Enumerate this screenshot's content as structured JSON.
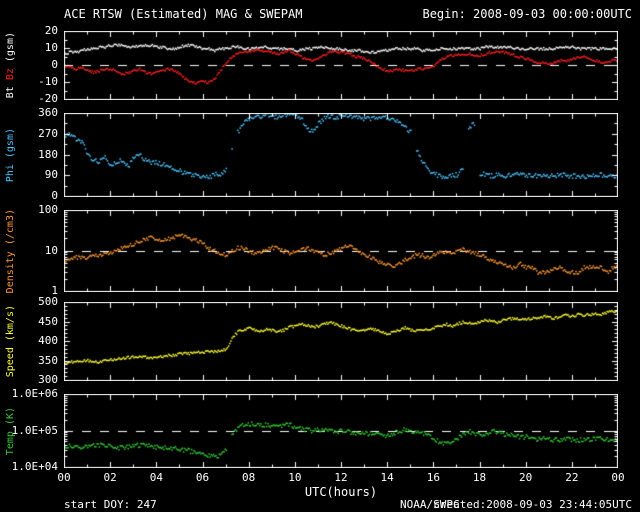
{
  "header": {
    "title": "ACE RTSW (Estimated) MAG & SWEPAM",
    "begin": "Begin: 2008-09-03 00:00:00UTC"
  },
  "footer": {
    "start_doy": "start DOY: 247",
    "agency": "NOAA/SWPC",
    "created": "created:2008-09-03 23:44:05UTC"
  },
  "colors": {
    "background": "#000000",
    "frame": "#ffffff",
    "dashed_reference": "#ffffff",
    "bt": "#ffffff",
    "bz": "#ff2020",
    "phi": "#4dc3ff",
    "density": "#ff9933",
    "speed": "#ffff33",
    "temp": "#33cc33"
  },
  "x_axis": {
    "label": "UTC(hours)",
    "tick_labels": [
      "00",
      "02",
      "04",
      "06",
      "08",
      "10",
      "12",
      "14",
      "16",
      "18",
      "20",
      "22",
      "00"
    ],
    "start_hour": 0,
    "end_hour": 24,
    "sample_step_hours": 0.25
  },
  "chart_data": [
    {
      "type": "scatter",
      "name": "bt-bz",
      "ylabel": [
        {
          "text": "Bt",
          "color": "#ffffff"
        },
        {
          "text": "Bz",
          "color": "#ff2020"
        },
        {
          "text": "(gsm)",
          "color": "#ffffff"
        }
      ],
      "scale": "linear",
      "ylim": [
        -20,
        20
      ],
      "minor_step": 5,
      "dashed_at": 0,
      "yticks": [
        {
          "label": "20",
          "value": 20
        },
        {
          "label": "10",
          "value": 10
        },
        {
          "label": "0",
          "value": 0
        },
        {
          "label": "-10",
          "value": -10
        },
        {
          "label": "-20",
          "value": -20
        }
      ],
      "series": [
        {
          "name": "Bt",
          "color": "#ffffff",
          "values": [
            7,
            8,
            8,
            9,
            10,
            10,
            11,
            11,
            12,
            12,
            12,
            11,
            11,
            12,
            12,
            12,
            11,
            11,
            10,
            10,
            11,
            12,
            12,
            11,
            10,
            10,
            9,
            10,
            10,
            11,
            11,
            10,
            10,
            10,
            11,
            11,
            10,
            10,
            10,
            10,
            9,
            9,
            10,
            10,
            11,
            11,
            10,
            10,
            10,
            9,
            9,
            9,
            8,
            8,
            8,
            9,
            9,
            10,
            10,
            10,
            10,
            10,
            9,
            9,
            9,
            10,
            10,
            10,
            10,
            10,
            10,
            10,
            10,
            11,
            11,
            11,
            11,
            11,
            10,
            10,
            10,
            10,
            10,
            10,
            10,
            10,
            11,
            11,
            11,
            10,
            10,
            10,
            10,
            10,
            10,
            10,
            10
          ]
        },
        {
          "name": "Bz",
          "color": "#ff2020",
          "values": [
            0,
            -1,
            -2,
            -1,
            -3,
            -4,
            -3,
            -2,
            -2,
            -3,
            -5,
            -4,
            -3,
            -2,
            -4,
            -5,
            -4,
            -3,
            -2,
            -3,
            -5,
            -8,
            -10,
            -10,
            -9,
            -10,
            -8,
            -3,
            2,
            5,
            7,
            8,
            8,
            9,
            9,
            8,
            8,
            7,
            8,
            9,
            7,
            5,
            4,
            3,
            4,
            6,
            8,
            8,
            8,
            7,
            6,
            5,
            4,
            2,
            0,
            -2,
            -3,
            -3,
            -2,
            -3,
            -3,
            -2,
            -2,
            -1,
            0,
            3,
            5,
            6,
            6,
            7,
            7,
            6,
            6,
            7,
            8,
            8,
            8,
            7,
            6,
            5,
            4,
            3,
            2,
            2,
            1,
            2,
            3,
            3,
            4,
            5,
            5,
            4,
            3,
            2,
            2,
            3,
            3
          ]
        }
      ]
    },
    {
      "type": "scatter",
      "name": "phi",
      "ylabel": [
        {
          "text": "Phi",
          "color": "#4dc3ff"
        },
        {
          "text": "(gsm)",
          "color": "#4dc3ff"
        }
      ],
      "scale": "linear",
      "ylim": [
        0,
        360
      ],
      "minor_step": 45,
      "dashed_at": null,
      "yticks": [
        {
          "label": "360",
          "value": 360
        },
        {
          "label": "270",
          "value": 270
        },
        {
          "label": "180",
          "value": 180
        },
        {
          "label": "90",
          "value": 90
        },
        {
          "label": "0",
          "value": 0
        }
      ],
      "series": [
        {
          "name": "Phi",
          "color": "#4dc3ff",
          "values": [
            260,
            270,
            250,
            240,
            180,
            160,
            150,
            170,
            140,
            150,
            160,
            130,
            170,
            180,
            160,
            150,
            150,
            140,
            130,
            120,
            110,
            100,
            95,
            90,
            90,
            85,
            95,
            100,
            120,
            200,
            280,
            320,
            340,
            350,
            345,
            355,
            350,
            345,
            355,
            360,
            350,
            340,
            300,
            280,
            320,
            340,
            350,
            345,
            350,
            355,
            345,
            340,
            335,
            340,
            345,
            350,
            340,
            330,
            320,
            300,
            280,
            200,
            150,
            120,
            100,
            90,
            85,
            90,
            95,
            120,
            300,
            320,
            100,
            95,
            90,
            95,
            90,
            95,
            100,
            98,
            95,
            92,
            90,
            88,
            90,
            93,
            95,
            92,
            90,
            88,
            85,
            90,
            92,
            95,
            90,
            88,
            90
          ]
        }
      ]
    },
    {
      "type": "scatter",
      "name": "density",
      "ylabel": [
        {
          "text": "Density",
          "color": "#ff9933"
        },
        {
          "text": "(/cm3)",
          "color": "#ff9933"
        }
      ],
      "scale": "log",
      "ylim": [
        1,
        100
      ],
      "minor_step": null,
      "dashed_at": 10,
      "yticks": [
        {
          "label": "100",
          "value": 100
        },
        {
          "label": "10",
          "value": 10
        },
        {
          "label": "1",
          "value": 1
        }
      ],
      "series": [
        {
          "name": "Density",
          "color": "#ff9933",
          "values": [
            6,
            6,
            7,
            7,
            7,
            8,
            8,
            9,
            9,
            10,
            12,
            14,
            15,
            18,
            20,
            22,
            20,
            18,
            20,
            22,
            25,
            22,
            20,
            18,
            15,
            12,
            10,
            9,
            8,
            10,
            12,
            12,
            10,
            9,
            10,
            11,
            12,
            12,
            10,
            9,
            10,
            11,
            12,
            10,
            9,
            8,
            9,
            10,
            12,
            14,
            12,
            10,
            8,
            7,
            6,
            5,
            5,
            4,
            5,
            6,
            7,
            8,
            8,
            7,
            8,
            9,
            10,
            9,
            10,
            11,
            10,
            9,
            8,
            7,
            6,
            5,
            5,
            4,
            4,
            5,
            4,
            4,
            3,
            3,
            3,
            4,
            4,
            3,
            3,
            3,
            4,
            4,
            4,
            4,
            3,
            4,
            4
          ]
        }
      ]
    },
    {
      "type": "scatter",
      "name": "speed",
      "ylabel": [
        {
          "text": "Speed",
          "color": "#ffff33"
        },
        {
          "text": "(km/s)",
          "color": "#ffff33"
        }
      ],
      "scale": "linear",
      "ylim": [
        300,
        500
      ],
      "minor_step": 10,
      "dashed_at": null,
      "yticks": [
        {
          "label": "500",
          "value": 500
        },
        {
          "label": "450",
          "value": 450
        },
        {
          "label": "400",
          "value": 400
        },
        {
          "label": "350",
          "value": 350
        },
        {
          "label": "300",
          "value": 300
        }
      ],
      "series": [
        {
          "name": "Speed",
          "color": "#ffff33",
          "values": [
            345,
            348,
            350,
            350,
            352,
            350,
            348,
            352,
            355,
            355,
            358,
            360,
            360,
            362,
            360,
            358,
            360,
            362,
            365,
            365,
            368,
            370,
            370,
            372,
            372,
            375,
            375,
            378,
            380,
            410,
            425,
            430,
            435,
            430,
            428,
            432,
            430,
            425,
            430,
            438,
            440,
            445,
            442,
            438,
            440,
            445,
            450,
            445,
            440,
            435,
            430,
            428,
            430,
            435,
            430,
            425,
            420,
            425,
            430,
            435,
            430,
            428,
            432,
            430,
            435,
            440,
            445,
            440,
            445,
            450,
            448,
            445,
            450,
            455,
            452,
            450,
            455,
            458,
            460,
            455,
            458,
            460,
            462,
            465,
            462,
            460,
            465,
            468,
            465,
            470,
            468,
            470,
            472,
            470,
            475,
            478,
            475
          ]
        }
      ]
    },
    {
      "type": "scatter",
      "name": "temp",
      "ylabel": [
        {
          "text": "Temp",
          "color": "#33cc33"
        },
        {
          "text": "(K)",
          "color": "#33cc33"
        }
      ],
      "scale": "log",
      "ylim": [
        10000,
        1000000
      ],
      "minor_step": null,
      "dashed_at": 100000,
      "yticks": [
        {
          "label": "1.0E+06",
          "value": 1000000
        },
        {
          "label": "1.0E+05",
          "value": 100000
        },
        {
          "label": "1.0E+04",
          "value": 10000
        }
      ],
      "series": [
        {
          "name": "Temp",
          "color": "#33cc33",
          "values": [
            40000,
            38000,
            35000,
            36000,
            38000,
            40000,
            42000,
            40000,
            38000,
            36000,
            35000,
            37000,
            40000,
            42000,
            40000,
            38000,
            36000,
            35000,
            34000,
            35000,
            33000,
            30000,
            28000,
            26000,
            25000,
            22000,
            20000,
            22000,
            30000,
            80000,
            120000,
            150000,
            160000,
            150000,
            140000,
            150000,
            140000,
            130000,
            140000,
            150000,
            130000,
            120000,
            110000,
            100000,
            110000,
            120000,
            110000,
            100000,
            100000,
            95000,
            90000,
            95000,
            90000,
            85000,
            80000,
            75000,
            80000,
            90000,
            100000,
            110000,
            100000,
            95000,
            90000,
            85000,
            60000,
            50000,
            45000,
            50000,
            60000,
            80000,
            100000,
            90000,
            80000,
            90000,
            100000,
            95000,
            85000,
            80000,
            75000,
            70000,
            70000,
            65000,
            60000,
            65000,
            60000,
            58000,
            60000,
            62000,
            60000,
            58000,
            56000,
            58000,
            60000,
            62000,
            60000,
            58000,
            60000
          ]
        }
      ]
    }
  ]
}
